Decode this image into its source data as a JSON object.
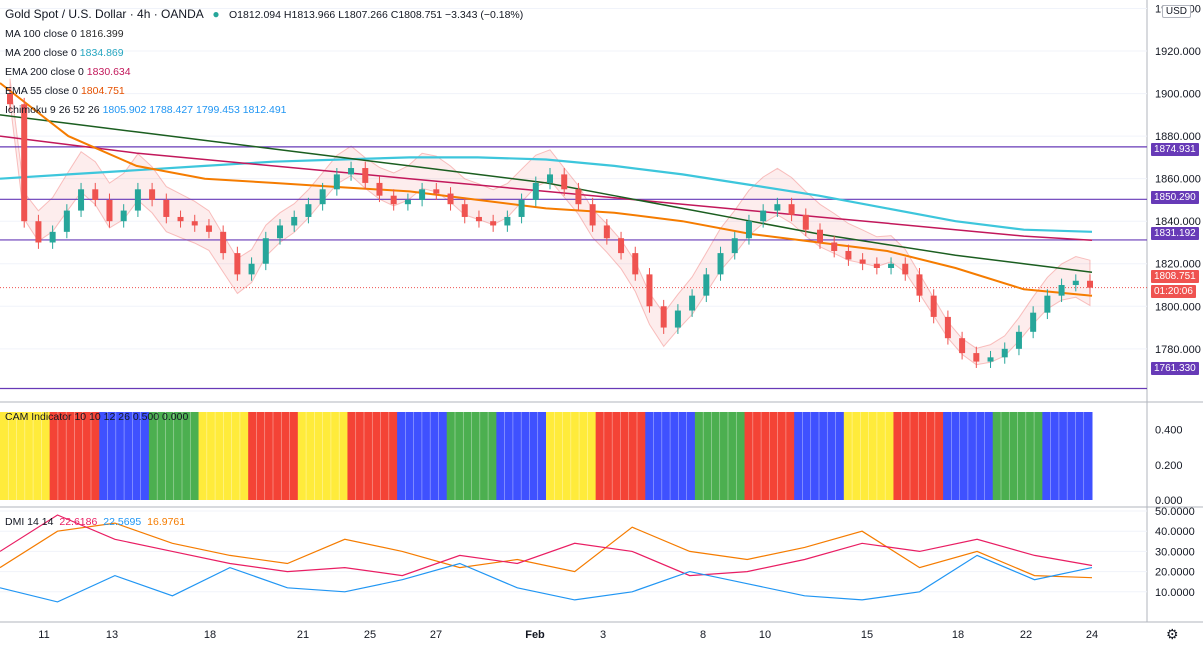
{
  "header": {
    "title": "Gold Spot / U.S. Dollar · 4h · OANDA",
    "ohlc": "O1812.094 H1813.966 L1807.266 C1808.751 −3.343 (−0.18%)",
    "currency": "USD"
  },
  "indicators": [
    {
      "label": "MA 100 close 0",
      "value": "1816.399",
      "color": "#2b2b2b"
    },
    {
      "label": "MA 200 close 0",
      "value": "1834.869",
      "color": "#26a6c0"
    },
    {
      "label": "EMA 200 close 0",
      "value": "1830.634",
      "color": "#c2185b"
    },
    {
      "label": "EMA 55 close 0",
      "value": "1804.751",
      "color": "#e65100"
    },
    {
      "label": "Ichimoku 9 26 52 26",
      "value": "1805.902 1788.427 1799.453 1812.491",
      "color": "#131722"
    }
  ],
  "levels": [
    {
      "price": 1874.931,
      "label": "1874.931"
    },
    {
      "price": 1850.29,
      "label": "1850.290"
    },
    {
      "price": 1831.192,
      "label": "1831.192"
    },
    {
      "price": 1761.33,
      "label": "1761.330"
    }
  ],
  "last_price": {
    "label": "1808.751",
    "countdown": "01:20:06",
    "color": "#ef5350"
  },
  "cam_pane": {
    "title": "CAM Indicator 10 10 12 26 0.500 0.000",
    "ticks": [
      "0.400",
      "0.200",
      "0.000"
    ]
  },
  "dmi_pane": {
    "title": "DMI 14 14",
    "values": [
      {
        "value": "22.6186",
        "color": "#e91e63"
      },
      {
        "value": "22.5695",
        "color": "#2196f3"
      },
      {
        "value": "16.9761",
        "color": "#f57c00"
      }
    ],
    "ticks": [
      "50.0000",
      "40.0000",
      "30.0000",
      "20.0000",
      "10.0000"
    ]
  },
  "chart_data": {
    "type": "candlestick",
    "price_axis": {
      "ticks": [
        "1940.000",
        "1920.000",
        "1900.000",
        "1880.000",
        "1860.000",
        "1840.000",
        "1820.000",
        "1800.000",
        "1780.000"
      ],
      "range": [
        1755,
        1944
      ]
    },
    "x_axis": {
      "ticks": [
        "11",
        "13",
        "18",
        "21",
        "25",
        "27",
        "Feb",
        "3",
        "8",
        "10",
        "15",
        "18",
        "22",
        "24"
      ]
    },
    "close_series": [
      1895,
      1840,
      1830,
      1835,
      1845,
      1855,
      1850,
      1840,
      1845,
      1855,
      1850,
      1842,
      1840,
      1838,
      1835,
      1825,
      1815,
      1820,
      1832,
      1838,
      1842,
      1848,
      1855,
      1862,
      1865,
      1858,
      1852,
      1848,
      1850,
      1855,
      1853,
      1848,
      1842,
      1840,
      1838,
      1842,
      1850,
      1858,
      1862,
      1855,
      1848,
      1838,
      1832,
      1825,
      1815,
      1800,
      1790,
      1798,
      1805,
      1815,
      1825,
      1832,
      1840,
      1845,
      1848,
      1843,
      1836,
      1830,
      1826,
      1822,
      1820,
      1818,
      1820,
      1815,
      1805,
      1795,
      1785,
      1778,
      1774,
      1776,
      1780,
      1788,
      1797,
      1805,
      1810,
      1812,
      1808.751
    ],
    "sma100": [
      1890,
      1886,
      1882,
      1878,
      1874,
      1870,
      1866,
      1862,
      1858,
      1852,
      1846,
      1840,
      1834,
      1829,
      1824,
      1820,
      1816
    ],
    "sma200": [
      1860,
      1862,
      1864,
      1866,
      1868,
      1869,
      1870,
      1870,
      1869,
      1866,
      1862,
      1857,
      1852,
      1846,
      1840,
      1836,
      1835
    ],
    "ema200": [
      1880,
      1876,
      1872,
      1869,
      1866,
      1863,
      1860,
      1857,
      1854,
      1851,
      1848,
      1845,
      1842,
      1839,
      1836,
      1833,
      1831
    ],
    "ema55": [
      1905,
      1880,
      1866,
      1860,
      1858,
      1856,
      1854,
      1850,
      1846,
      1844,
      1840,
      1834,
      1830,
      1826,
      1818,
      1808,
      1805
    ],
    "cam_colors": [
      "yellow",
      "red",
      "blue",
      "green",
      "yellow",
      "red",
      "yellow",
      "red",
      "blue",
      "green",
      "blue",
      "yellow",
      "red",
      "blue",
      "green",
      "red",
      "blue",
      "yellow",
      "red",
      "blue",
      "green",
      "blue"
    ],
    "dmi": {
      "plus_di": [
        12,
        5,
        18,
        8,
        22,
        12,
        10,
        16,
        24,
        12,
        6,
        10,
        20,
        14,
        8,
        6,
        10,
        28,
        16,
        22
      ],
      "minus_di": [
        30,
        48,
        36,
        30,
        24,
        20,
        22,
        18,
        28,
        24,
        34,
        30,
        18,
        20,
        26,
        34,
        30,
        36,
        28,
        23
      ],
      "adx": [
        22,
        40,
        44,
        34,
        28,
        24,
        36,
        30,
        22,
        26,
        20,
        42,
        30,
        26,
        32,
        40,
        22,
        30,
        18,
        17
      ]
    }
  }
}
